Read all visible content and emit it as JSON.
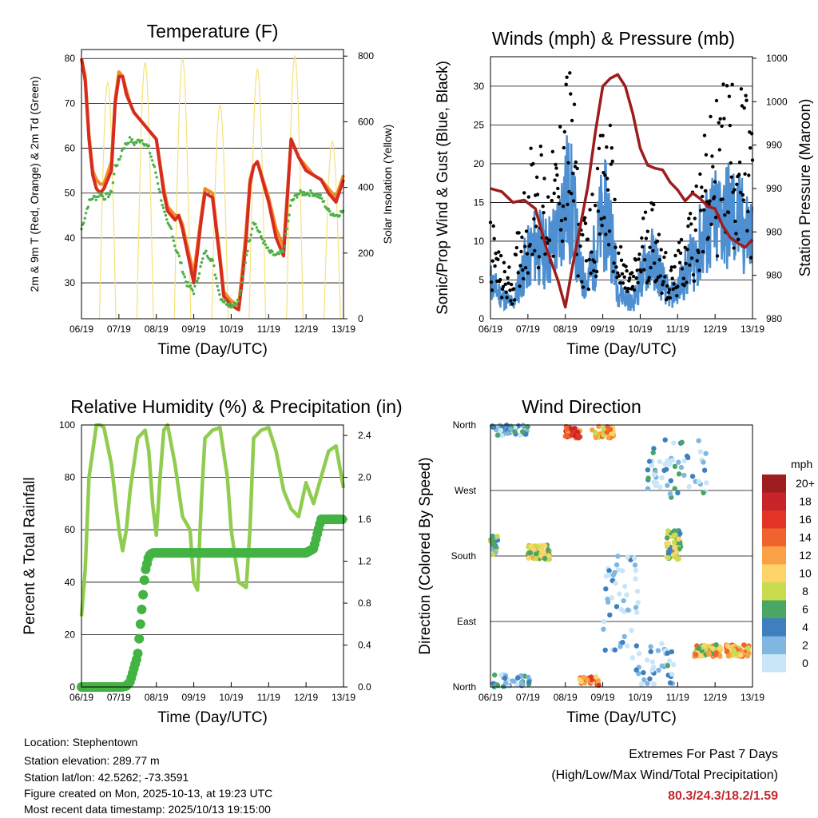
{
  "colors": {
    "temp2m": "#d62c1f",
    "temp9m": "#f28a2a",
    "dewpoint": "#4cb047",
    "insolation": "#f5e27a",
    "gust": "#000000",
    "wind": "#4d8fd1",
    "pressure": "#9e1c1c",
    "rh": "#90cc4f",
    "precip": "#43b343",
    "extremes": "#c0282e"
  },
  "footer": {
    "location": "Location: Stephentown",
    "elevation": "Station elevation: 289.77 m",
    "latlon": "Station lat/lon: 42.5262; -73.3591",
    "created": "Figure created on Mon, 2025-10-13, at 19:23 UTC",
    "recent": "Most recent data timestamp: 2025/10/13 19:15:00"
  },
  "extremes": {
    "title": "Extremes For Past 7 Days",
    "subtitle": "(High/Low/Max Wind/Total Precipitation)",
    "values": "80.3/24.3/18.2/1.59"
  },
  "chart_data": [
    {
      "type": "line",
      "title": "Temperature (F)",
      "xlabel": "Time (Day/UTC)",
      "ylabel": "2m & 9m T (Red, Orange) & 2m Td (Green)",
      "ylabel_right": "Solar Insolation (Yellow)",
      "x_ticks": [
        "06/19",
        "07/19",
        "08/19",
        "09/19",
        "10/19",
        "11/19",
        "12/19",
        "13/19"
      ],
      "ylim": [
        22,
        82
      ],
      "y_ticks": [
        30,
        40,
        50,
        60,
        70,
        80
      ],
      "ylim_right": [
        0,
        820
      ],
      "y_ticks_right": [
        0,
        200,
        400,
        600,
        800
      ],
      "x": [
        0,
        0.1,
        0.2,
        0.3,
        0.4,
        0.5,
        0.6,
        0.8,
        0.9,
        1.0,
        1.1,
        1.2,
        1.3,
        1.4,
        1.6,
        1.8,
        2.0,
        2.2,
        2.3,
        2.4,
        2.5,
        2.6,
        2.7,
        2.8,
        3.0,
        3.2,
        3.3,
        3.5,
        3.7,
        3.8,
        4.0,
        4.2,
        4.3,
        4.4,
        4.5,
        4.6,
        4.7,
        5.0,
        5.2,
        5.4,
        5.6,
        5.8,
        6.0,
        6.2,
        6.4,
        6.6,
        6.8,
        7.0
      ],
      "series": [
        {
          "name": "2m T",
          "values": [
            80,
            75,
            62,
            54,
            51,
            50,
            51,
            55,
            70,
            76,
            76,
            72,
            70,
            68,
            66,
            64,
            62,
            50,
            46,
            45,
            44,
            45,
            42,
            38,
            30,
            44,
            50,
            49,
            35,
            27,
            25,
            24,
            31,
            40,
            52,
            56,
            57,
            48,
            40,
            36,
            62,
            58,
            55,
            54,
            53,
            50,
            48,
            53
          ]
        },
        {
          "name": "9m T",
          "values": [
            80,
            76,
            63,
            55,
            53,
            52,
            52,
            57,
            71,
            77,
            76,
            73,
            70,
            68,
            66,
            64,
            62,
            51,
            47,
            46,
            45,
            45,
            43,
            39,
            32,
            45,
            51,
            50,
            36,
            28,
            26,
            25,
            33,
            42,
            53,
            56,
            57,
            49,
            42,
            38,
            62,
            58,
            56,
            54,
            53,
            51,
            49,
            54
          ]
        },
        {
          "name": "2m Td",
          "values": [
            42,
            45,
            48,
            49,
            49,
            50,
            49,
            50,
            56,
            57,
            60,
            61,
            62,
            61,
            62,
            60,
            54,
            46,
            43,
            42,
            38,
            36,
            33,
            30,
            28,
            34,
            37,
            35,
            27,
            26,
            25,
            26,
            30,
            36,
            40,
            44,
            42,
            37,
            36,
            37,
            48,
            50,
            50,
            50,
            49,
            46,
            45,
            46
          ]
        }
      ],
      "insolation_peaks_day": [
        0.7,
        1.7,
        2.7,
        3.7,
        4.7,
        5.7,
        6.7
      ],
      "insolation_peak_values": [
        720,
        780,
        790,
        650,
        760,
        800,
        540
      ]
    },
    {
      "type": "line",
      "title": "Winds (mph) & Pressure (mb)",
      "xlabel": "Time (Day/UTC)",
      "ylabel": "Sonic/Prop Wind & Gust (Blue, Black)",
      "ylabel_right": "Station Pressure (Maroon)",
      "x_ticks": [
        "06/19",
        "07/19",
        "08/19",
        "09/19",
        "10/19",
        "11/19",
        "12/19",
        "13/19"
      ],
      "ylim": [
        0,
        33.8
      ],
      "y_ticks": [
        0,
        5,
        10,
        15,
        20,
        25,
        30
      ],
      "y_ticks_right_labels": [
        "980",
        "980",
        "980",
        "990",
        "990",
        "1000",
        "1000"
      ],
      "x": [
        0,
        0.3,
        0.6,
        0.9,
        1.2,
        1.5,
        1.8,
        2.0,
        2.2,
        2.4,
        2.6,
        2.8,
        3.0,
        3.2,
        3.4,
        3.6,
        3.8,
        4.0,
        4.2,
        4.4,
        4.6,
        4.8,
        5.0,
        5.2,
        5.4,
        5.6,
        5.8,
        6.0,
        6.2,
        6.4,
        6.6,
        6.8,
        7.0
      ],
      "series": [
        {
          "name": "Gust",
          "values": [
            11,
            6,
            5,
            14,
            20,
            15,
            18,
            27,
            24,
            11,
            10,
            15,
            20,
            20,
            8,
            6,
            5,
            9,
            13,
            12,
            8,
            5,
            7,
            10,
            13,
            17,
            19,
            22,
            24,
            25,
            24,
            23,
            20
          ]
        },
        {
          "name": "Wind",
          "values": [
            5,
            3,
            2,
            7,
            10,
            9,
            11,
            17,
            15,
            6,
            5,
            9,
            14,
            13,
            4,
            3,
            2,
            5,
            8,
            8,
            5,
            3,
            4,
            6,
            8,
            10,
            12,
            13,
            14,
            14,
            13,
            12,
            11
          ]
        },
        {
          "name": "Pressure",
          "values": [
            16.8,
            16.4,
            15,
            15.3,
            14.2,
            9,
            5,
            1.5,
            7,
            12,
            17,
            24,
            30,
            31,
            31.5,
            30,
            26.5,
            22,
            19.8,
            19.4,
            19.2,
            17.6,
            16.6,
            15.2,
            16.2,
            15.5,
            14.5,
            14.2,
            12,
            10.5,
            9.8,
            9.2,
            10.2
          ]
        }
      ]
    },
    {
      "type": "line",
      "title": "Relative Humidity (%) & Precipitation (in)",
      "xlabel": "Time (Day/UTC)",
      "ylabel": "Percent & Total Rainfall",
      "x_ticks": [
        "06/19",
        "07/19",
        "08/19",
        "09/19",
        "10/19",
        "11/19",
        "12/19",
        "13/19"
      ],
      "ylim": [
        0,
        100
      ],
      "y_ticks": [
        0,
        20,
        40,
        60,
        80,
        100
      ],
      "ylim_right": [
        0,
        2.5
      ],
      "y_ticks_right": [
        0.0,
        0.4,
        0.8,
        1.2,
        1.6,
        2.0,
        2.4
      ],
      "x": [
        0,
        0.1,
        0.2,
        0.3,
        0.4,
        0.5,
        0.6,
        0.8,
        1.0,
        1.1,
        1.2,
        1.3,
        1.5,
        1.7,
        1.8,
        1.9,
        2.0,
        2.1,
        2.2,
        2.3,
        2.5,
        2.7,
        2.9,
        3.0,
        3.1,
        3.2,
        3.3,
        3.5,
        3.7,
        3.9,
        4.0,
        4.2,
        4.4,
        4.5,
        4.6,
        4.8,
        5.0,
        5.2,
        5.4,
        5.6,
        5.8,
        6.0,
        6.2,
        6.4,
        6.6,
        6.8,
        7.0
      ],
      "series": [
        {
          "name": "Relative Humidity",
          "values": [
            27,
            45,
            80,
            90,
            100,
            100,
            99,
            85,
            60,
            52,
            60,
            75,
            95,
            98,
            90,
            70,
            58,
            80,
            98,
            100,
            85,
            65,
            60,
            40,
            37,
            70,
            95,
            98,
            99,
            80,
            60,
            40,
            38,
            60,
            95,
            98,
            99,
            90,
            75,
            68,
            65,
            78,
            70,
            80,
            90,
            92,
            76
          ]
        },
        {
          "name": "Precipitation",
          "values": [
            0,
            0,
            0,
            0,
            0,
            0,
            0,
            0,
            0,
            0.001,
            0.01,
            0.05,
            0.3,
            1.1,
            1.25,
            1.28,
            1.28,
            1.28,
            1.28,
            1.28,
            1.28,
            1.28,
            1.28,
            1.28,
            1.28,
            1.28,
            1.28,
            1.28,
            1.28,
            1.28,
            1.28,
            1.28,
            1.28,
            1.28,
            1.28,
            1.28,
            1.28,
            1.28,
            1.28,
            1.28,
            1.28,
            1.28,
            1.32,
            1.6,
            1.6,
            1.6,
            1.6
          ]
        }
      ]
    },
    {
      "type": "scatter",
      "title": "Wind Direction",
      "xlabel": "Time (Day/UTC)",
      "ylabel": "Direction (Colored By Speed)",
      "x_ticks": [
        "06/19",
        "07/19",
        "08/19",
        "09/19",
        "10/19",
        "11/19",
        "12/19",
        "13/19"
      ],
      "ylim": [
        0,
        360
      ],
      "y_ticks": [
        0,
        90,
        180,
        270,
        360
      ],
      "y_tick_labels": [
        "North",
        "East",
        "South",
        "West",
        "North"
      ],
      "colorbar_unit": "mph",
      "colorbar_labels": [
        "20+",
        "18",
        "16",
        "14",
        "12",
        "10",
        "8",
        "6",
        "4",
        "2",
        "0"
      ],
      "colorbar_colors": [
        "#9e1d1f",
        "#c7252a",
        "#e23427",
        "#f0632e",
        "#f9a146",
        "#fdd46a",
        "#c9dc4f",
        "#4aa665",
        "#3f7fbf",
        "#7fb7e2",
        "#c8e6f7"
      ],
      "clusters": [
        {
          "day": 0.5,
          "dir": 355,
          "spread_day": 0.5,
          "spread_dir": 10,
          "speed": 3,
          "n": 60
        },
        {
          "day": 0.1,
          "dir": 195,
          "spread_day": 0.1,
          "spread_dir": 15,
          "speed": 5,
          "n": 20
        },
        {
          "day": 1.3,
          "dir": 185,
          "spread_day": 0.3,
          "spread_dir": 10,
          "speed": 9,
          "n": 70
        },
        {
          "day": 2.2,
          "dir": 350,
          "spread_day": 0.2,
          "spread_dir": 8,
          "speed": 15,
          "n": 40
        },
        {
          "day": 3.0,
          "dir": 350,
          "spread_day": 0.3,
          "spread_dir": 8,
          "speed": 11,
          "n": 40
        },
        {
          "day": 4.9,
          "dir": 195,
          "spread_day": 0.2,
          "spread_dir": 20,
          "speed": 7,
          "n": 70
        },
        {
          "day": 5.0,
          "dir": 300,
          "spread_day": 0.8,
          "spread_dir": 40,
          "speed": 2,
          "n": 60
        },
        {
          "day": 5.8,
          "dir": 50,
          "spread_day": 0.35,
          "spread_dir": 8,
          "speed": 10,
          "n": 80
        },
        {
          "day": 6.6,
          "dir": 50,
          "spread_day": 0.3,
          "spread_dir": 8,
          "speed": 11,
          "n": 70
        },
        {
          "day": 2.6,
          "dir": 8,
          "spread_day": 0.3,
          "spread_dir": 6,
          "speed": 12,
          "n": 25
        },
        {
          "day": 0.6,
          "dir": 10,
          "spread_day": 0.5,
          "spread_dir": 8,
          "speed": 3,
          "n": 25
        },
        {
          "day": 4.4,
          "dir": 30,
          "spread_day": 0.5,
          "spread_dir": 30,
          "speed": 2,
          "n": 40
        },
        {
          "day": 3.5,
          "dir": 100,
          "spread_day": 0.5,
          "spread_dir": 80,
          "speed": 1,
          "n": 50
        }
      ]
    }
  ]
}
